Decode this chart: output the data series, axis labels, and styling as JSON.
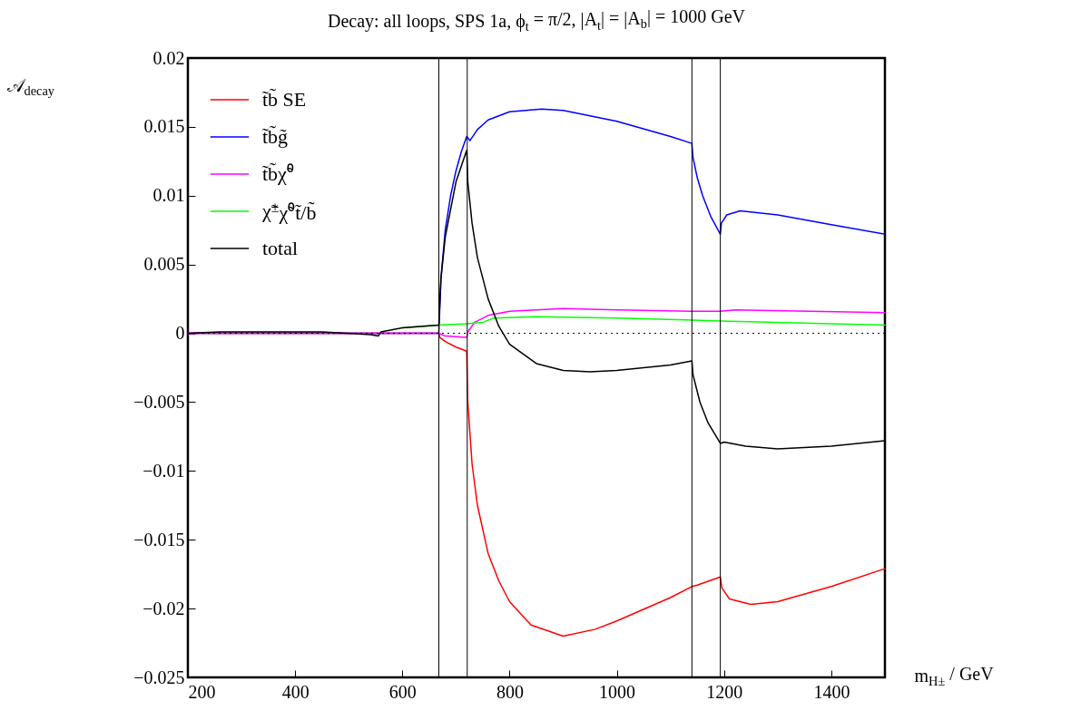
{
  "chart_data": {
    "type": "line",
    "title": "Decay: all loops, SPS 1a, ϕ$_{t}$ = π/2, |A$_{t}$| = |A$_{b}$| = 1000 GeV",
    "xlabel": "m$_{H±}$ / GeV",
    "ylabel": "𝒜$_{decay}$",
    "xlim": [
      200,
      1500
    ],
    "xticks": [
      200,
      400,
      600,
      800,
      1000,
      1200,
      1400
    ],
    "ylim": [
      -0.025,
      0.02
    ],
    "yticks": [
      {
        "value": -0.025,
        "label": "−0.025"
      },
      {
        "value": -0.02,
        "label": "−0.02"
      },
      {
        "value": -0.015,
        "label": "−0.015"
      },
      {
        "value": -0.01,
        "label": "−0.01"
      },
      {
        "value": -0.005,
        "label": "−0.005"
      },
      0,
      0.005,
      0.01,
      0.015,
      0.02
    ],
    "grid": false,
    "legend": "top left",
    "line_style": "solid",
    "marker": "none",
    "series": [
      {
        "name": "t̃b̃ SE",
        "color": "#ff0000",
        "x": [
          200,
          668,
          670,
          680,
          700,
          720,
          722,
          730,
          740,
          760,
          780,
          800,
          840,
          900,
          960,
          1000,
          1100,
          1140,
          1150,
          1193,
          1196,
          1210,
          1250,
          1300,
          1400,
          1500
        ],
        "values": [
          0,
          0,
          -0.0003,
          -0.0006,
          -0.001,
          -0.0013,
          -0.005,
          -0.0095,
          -0.0125,
          -0.016,
          -0.018,
          -0.0195,
          -0.0212,
          -0.022,
          -0.0215,
          -0.0209,
          -0.0192,
          -0.0184,
          -0.0183,
          -0.0177,
          -0.0185,
          -0.0193,
          -0.0197,
          -0.0195,
          -0.0184,
          -0.0171
        ]
      },
      {
        "name": "t̃b̃g̃",
        "color": "#0000ff",
        "x": [
          200,
          668,
          672,
          680,
          690,
          700,
          710,
          720,
          726,
          740,
          760,
          800,
          860,
          900,
          1000,
          1100,
          1140,
          1142,
          1150,
          1160,
          1175,
          1193,
          1195,
          1205,
          1230,
          1300,
          1400,
          1500
        ],
        "values": [
          0,
          0,
          0.004,
          0.0075,
          0.01,
          0.0118,
          0.0132,
          0.0143,
          0.014,
          0.0148,
          0.0155,
          0.0161,
          0.0163,
          0.0162,
          0.0154,
          0.0143,
          0.0138,
          0.0128,
          0.0113,
          0.01,
          0.0085,
          0.0072,
          0.008,
          0.0086,
          0.0089,
          0.0086,
          0.0079,
          0.0072
        ]
      },
      {
        "name": "t̃b̃χ̃⁰",
        "color": "#ff00ff",
        "x": [
          200,
          668,
          680,
          720,
          722,
          735,
          760,
          800,
          900,
          1000,
          1140,
          1193,
          1220,
          1500
        ],
        "values": [
          0,
          0,
          -0.0002,
          -0.0003,
          0.0001,
          0.0008,
          0.0013,
          0.0016,
          0.0018,
          0.0017,
          0.0016,
          0.0016,
          0.0017,
          0.0015
        ]
      },
      {
        "name": "χ̃$^{±}$χ̃⁰t̃/b̃",
        "color": "#00ff00",
        "x": [
          600,
          668,
          720,
          750,
          770,
          850,
          1000,
          1193,
          1500
        ],
        "values": [
          0.0004,
          0.0006,
          0.0007,
          0.0008,
          0.0011,
          0.0012,
          0.0011,
          0.0009,
          0.0006
        ]
      },
      {
        "name": "total",
        "color": "#000000",
        "x": [
          200,
          260,
          450,
          540,
          555,
          560,
          600,
          668,
          672,
          680,
          700,
          720,
          722,
          730,
          740,
          760,
          780,
          800,
          850,
          900,
          950,
          1000,
          1100,
          1140,
          1142,
          1155,
          1170,
          1193,
          1200,
          1240,
          1300,
          1400,
          1500
        ],
        "values": [
          0,
          0.0001,
          0.0001,
          -0.0001,
          -0.0002,
          0.0001,
          0.0004,
          0.0006,
          0.004,
          0.007,
          0.011,
          0.0133,
          0.011,
          0.008,
          0.0055,
          0.0025,
          0.0005,
          -0.0008,
          -0.0022,
          -0.0027,
          -0.0028,
          -0.0027,
          -0.0023,
          -0.002,
          -0.003,
          -0.005,
          -0.0065,
          -0.008,
          -0.0079,
          -0.0082,
          -0.0084,
          -0.0082,
          -0.0078
        ]
      }
    ],
    "ref_lines": [
      {
        "axis": "x",
        "value": 668,
        "color": "#000000",
        "line_style": "solid"
      },
      {
        "axis": "x",
        "value": 721,
        "color": "#000000",
        "line_style": "solid"
      },
      {
        "axis": "x",
        "value": 1140,
        "color": "#000000",
        "line_style": "solid"
      },
      {
        "axis": "x",
        "value": 1193,
        "color": "#000000",
        "line_style": "solid"
      },
      {
        "axis": "y",
        "value": 0,
        "color": "#000000",
        "line_style": "dotted"
      }
    ]
  }
}
